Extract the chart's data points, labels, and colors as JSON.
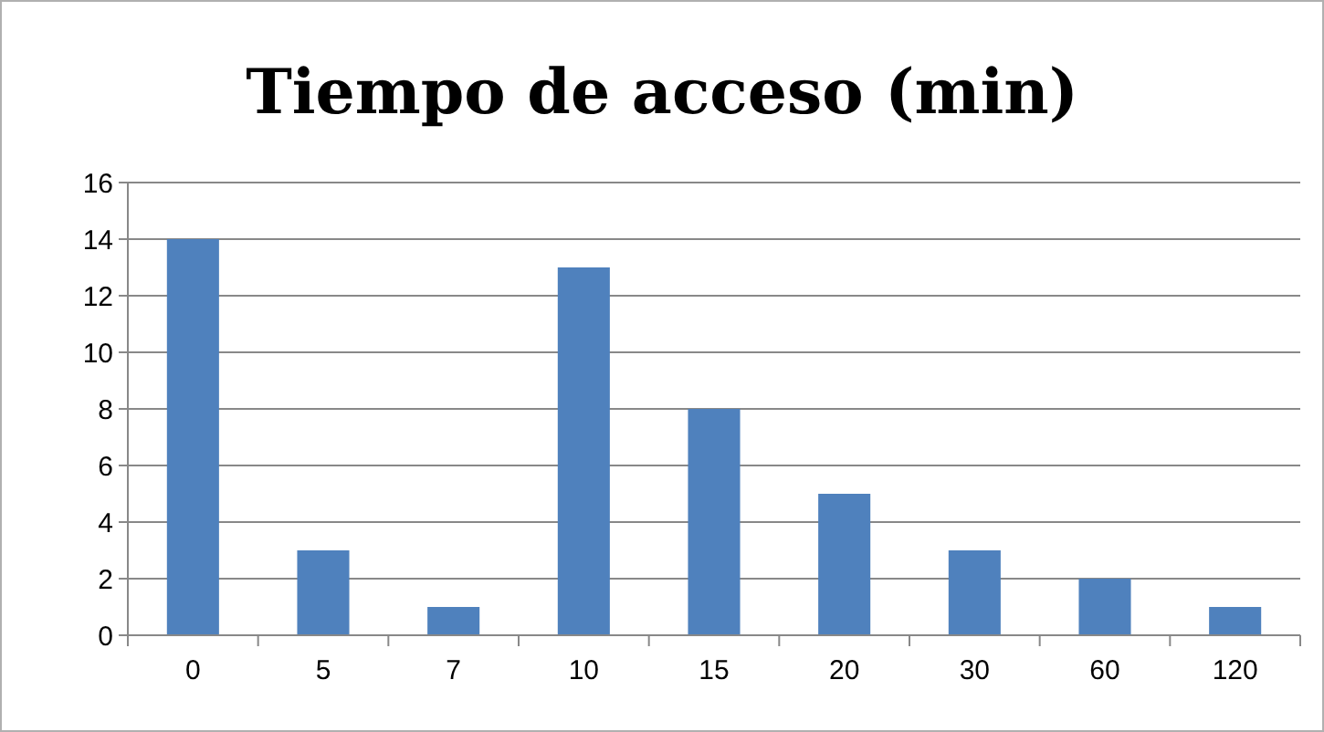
{
  "chart_data": {
    "type": "bar",
    "title": "Tiempo de acceso (min)",
    "categories": [
      "0",
      "5",
      "7",
      "10",
      "15",
      "20",
      "30",
      "60",
      "120"
    ],
    "values": [
      14,
      3,
      1,
      13,
      8,
      5,
      3,
      2,
      1
    ],
    "color": "#4f81bd",
    "ylim": [
      0,
      16
    ],
    "yticks": [
      0,
      2,
      4,
      6,
      8,
      10,
      12,
      14,
      16
    ],
    "grid": "y"
  }
}
